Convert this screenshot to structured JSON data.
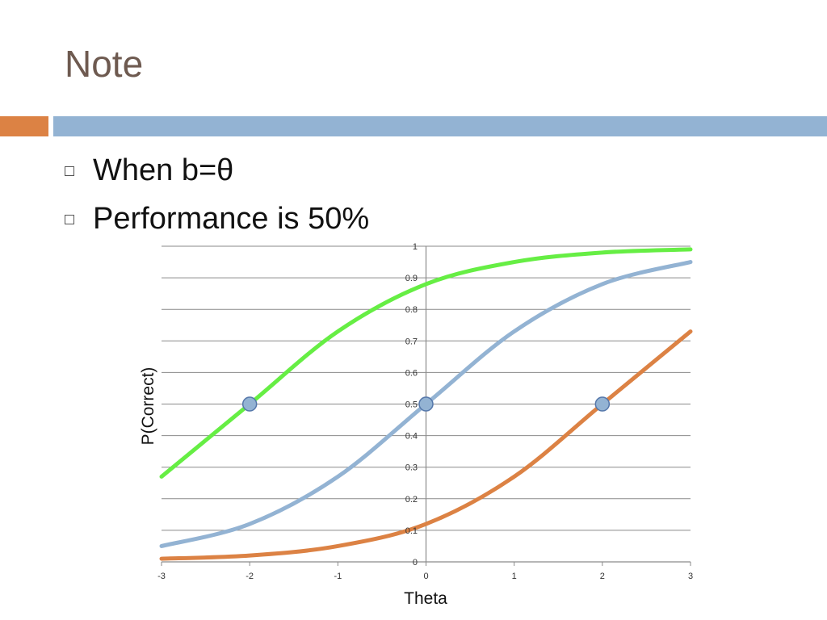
{
  "slide": {
    "title": "Note",
    "bullets": [
      "When b=θ",
      "Performance is 50%"
    ]
  },
  "colors": {
    "title": "#6e5a50",
    "accent_orange": "#dc8244",
    "accent_blue": "#93b3d3",
    "series_green": "#66ee44",
    "series_blue": "#93b3d3",
    "series_orange": "#dc8244",
    "marker_fill": "#93b3d3",
    "marker_stroke": "#5577aa"
  },
  "chart_data": {
    "type": "line",
    "xlabel": "Theta",
    "ylabel": "P(Correct)",
    "xlim": [
      -3,
      3
    ],
    "ylim": [
      0,
      1
    ],
    "x_ticks": [
      "-3",
      "-2",
      "-1",
      "0",
      "1",
      "2",
      "3"
    ],
    "y_ticks": [
      "0",
      "0.1",
      "0.2",
      "0.3",
      "0.4",
      "0.5",
      "0.6",
      "0.7",
      "0.8",
      "0.9",
      "1"
    ],
    "grid": true,
    "series": [
      {
        "b": -2,
        "color": "green",
        "x": [
          -3,
          -2,
          -1,
          0,
          1,
          2,
          3
        ],
        "y": [
          0.27,
          0.5,
          0.73,
          0.88,
          0.95,
          0.98,
          0.99
        ]
      },
      {
        "b": 0,
        "color": "blue",
        "x": [
          -3,
          -2,
          -1,
          0,
          1,
          2,
          3
        ],
        "y": [
          0.05,
          0.12,
          0.27,
          0.5,
          0.73,
          0.88,
          0.95
        ]
      },
      {
        "b": 2,
        "color": "orange",
        "x": [
          -3,
          -2,
          -1,
          0,
          1,
          2,
          3
        ],
        "y": [
          0.01,
          0.02,
          0.05,
          0.12,
          0.27,
          0.5,
          0.73
        ]
      }
    ],
    "markers": [
      {
        "x": -2,
        "y": 0.5
      },
      {
        "x": 0,
        "y": 0.5
      },
      {
        "x": 2,
        "y": 0.5
      }
    ]
  }
}
